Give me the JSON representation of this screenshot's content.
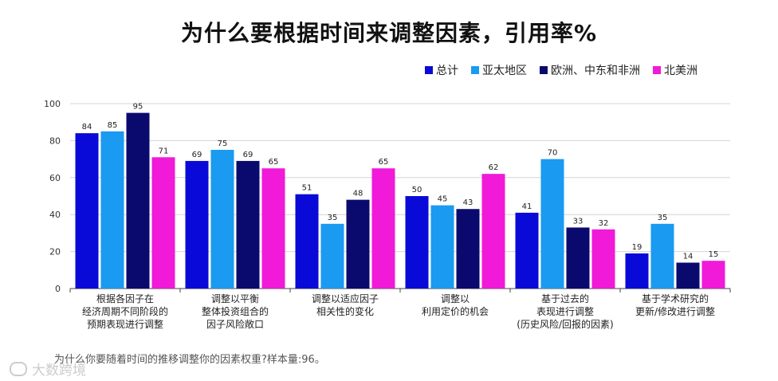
{
  "chart_data": {
    "type": "bar",
    "title": "为什么要根据时间来调整因素，引用率%",
    "categories": [
      [
        "根据各因子在",
        "经济周期不同阶段的",
        "预期表现进行调整"
      ],
      [
        "调整以平衡",
        "整体投资组合的",
        "因子风险敞口"
      ],
      [
        "调整以适应因子",
        "相关性的变化"
      ],
      [
        "调整以",
        "利用定价的机会"
      ],
      [
        "基于过去的",
        "表现进行调整",
        "(历史风险/回报的因素)"
      ],
      [
        "基于学术研究的",
        "更新/修改进行调整"
      ]
    ],
    "series": [
      {
        "name": "总计",
        "color": "#0a0ad8",
        "values": [
          84,
          69,
          51,
          50,
          41,
          19
        ]
      },
      {
        "name": "亚太地区",
        "color": "#1a9af0",
        "values": [
          85,
          75,
          35,
          45,
          70,
          35
        ]
      },
      {
        "name": "欧洲、中东和非洲",
        "color": "#0a0a6e",
        "values": [
          95,
          69,
          48,
          43,
          33,
          14
        ]
      },
      {
        "name": "北美洲",
        "color": "#f01ad8",
        "values": [
          71,
          65,
          65,
          62,
          32,
          15
        ]
      }
    ],
    "ylim": [
      0,
      100
    ],
    "yticks": [
      0,
      20,
      40,
      60,
      80,
      100
    ],
    "grid": true,
    "legend": "top-right",
    "xlabel": "",
    "ylabel": ""
  },
  "footnote": "为什么你要随着时间的推移调整你的因素权重?样本量:96。",
  "watermark": "大数跨境"
}
